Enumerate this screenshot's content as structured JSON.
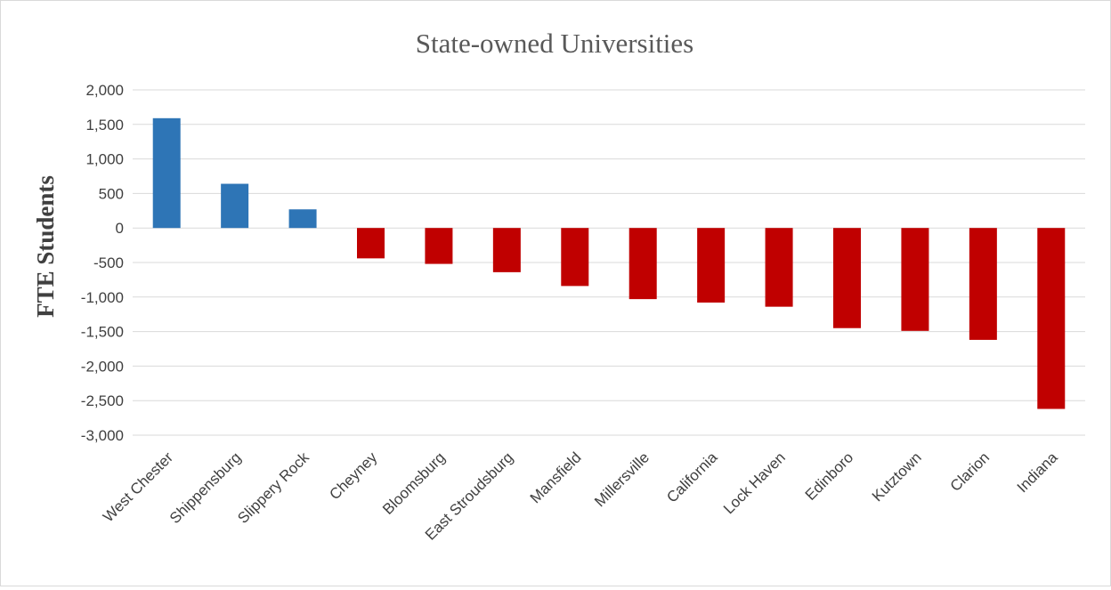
{
  "chart_data": {
    "type": "bar",
    "title": "State-owned Universities",
    "xlabel": "",
    "ylabel": "FTE Students",
    "ylim": [
      -3000,
      2000
    ],
    "ytick_step": 500,
    "ytick_labels": [
      "2,000",
      "1,500",
      "1,000",
      "500",
      "0",
      "-500",
      "-1,000",
      "-1,500",
      "-2,000",
      "-2,500",
      "-3,000"
    ],
    "grid": true,
    "legend": "none",
    "colors": {
      "positive": "#2E75B6",
      "negative": "#C00000"
    },
    "categories": [
      "West Chester",
      "Shippensburg",
      "Slippery Rock",
      "Cheyney",
      "Bloomsburg",
      "East Stroudsburg",
      "Mansfield",
      "Millersville",
      "California",
      "Lock Haven",
      "Edinboro",
      "Kutztown",
      "Clarion",
      "Indiana"
    ],
    "values": [
      1590,
      640,
      270,
      -440,
      -520,
      -640,
      -840,
      -1030,
      -1080,
      -1140,
      -1450,
      -1490,
      -1620,
      -2620
    ]
  }
}
